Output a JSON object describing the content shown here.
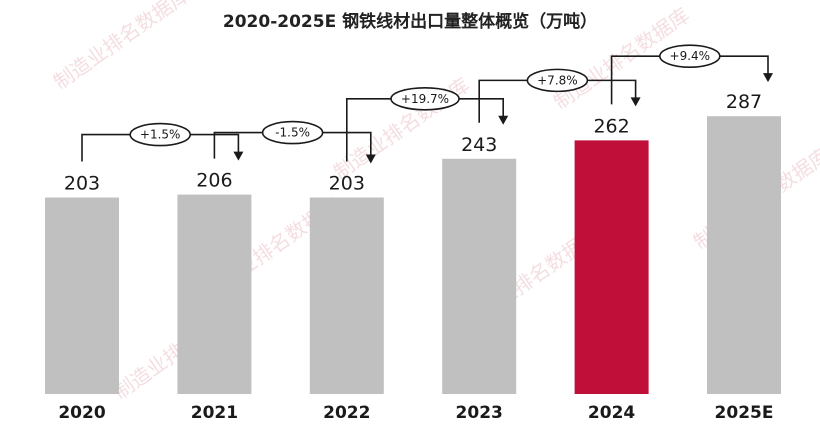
{
  "chart_data": {
    "type": "bar",
    "title": "2020-2025E 钢铁线材出口量整体概览（万吨）",
    "categories": [
      "2020",
      "2021",
      "2022",
      "2023",
      "2024",
      "2025E"
    ],
    "values": [
      203,
      206,
      203,
      243,
      262,
      287
    ],
    "value_labels": [
      "203",
      "206",
      "203",
      "243",
      "262",
      "287"
    ],
    "growth_labels": [
      "+1.5%",
      "-1.5%",
      "+19.7%",
      "+7.8%",
      "+9.4%"
    ],
    "ylim": [
      0,
      300
    ],
    "grid": false,
    "colors": {
      "default": "#c0c0c0",
      "highlight": "#c0103a",
      "highlight_index": 4
    },
    "watermark": "制造业排名数据库"
  }
}
